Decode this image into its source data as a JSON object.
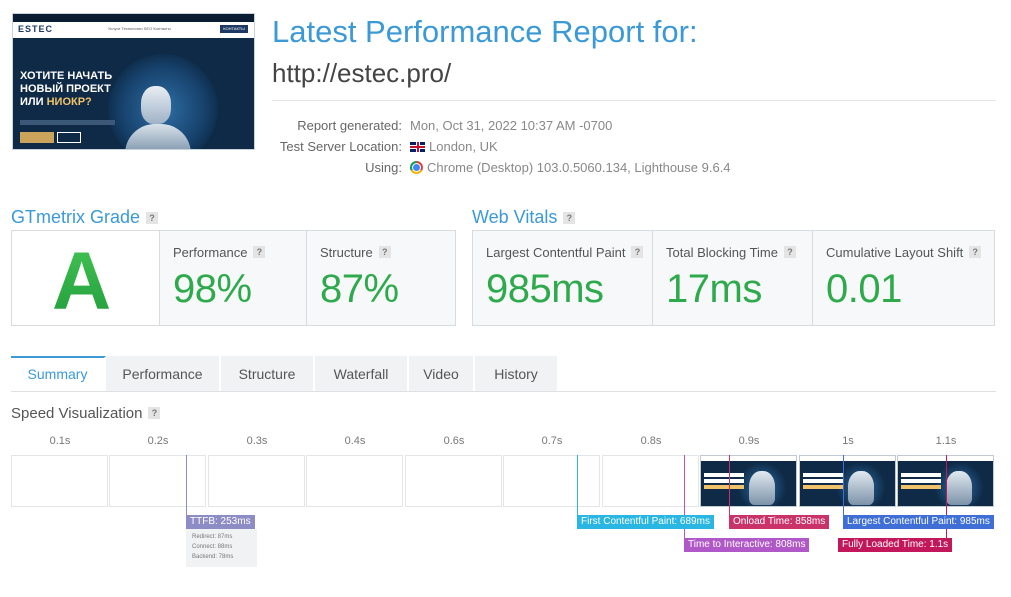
{
  "header": {
    "title": "Latest Performance Report for:",
    "url": "http://estec.pro/"
  },
  "thumbnail": {
    "logo": "ESTEC",
    "nav": "Услуги   Технологии   SEO   Контакты",
    "nav_button": "КОНТАКТЫ",
    "headline_1": "ХОТИТЕ НАЧАТЬ",
    "headline_2": "НОВЫЙ ПРОЕКТ",
    "headline_3a": "ИЛИ ",
    "headline_3b": "НИОКР?"
  },
  "report_meta": [
    {
      "key": "Report generated:",
      "value": "Mon, Oct 31, 2022 10:37 AM -0700",
      "icon": ""
    },
    {
      "key": "Test Server Location:",
      "value": "London, UK",
      "icon": "uk-flag-icon"
    },
    {
      "key": "Using:",
      "value": "Chrome (Desktop) 103.0.5060.134, Lighthouse 9.6.4",
      "icon": "chrome-icon"
    }
  ],
  "gtmetrix": {
    "title": "GTmetrix Grade",
    "help": "?",
    "grade": "A",
    "performance_label": "Performance",
    "performance_value": "98%",
    "structure_label": "Structure",
    "structure_value": "87%",
    "help_mark": "?"
  },
  "web_vitals": {
    "title": "Web Vitals",
    "help": "?",
    "lcp_label": "Largest Contentful Paint",
    "lcp_value": "985ms",
    "tbt_label": "Total Blocking Time",
    "tbt_value": "17ms",
    "cls_label": "Cumulative Layout Shift",
    "cls_value": "0.01"
  },
  "tabs": [
    "Summary",
    "Performance",
    "Structure",
    "Waterfall",
    "Video",
    "History"
  ],
  "active_tab": "Summary",
  "speed": {
    "title": "Speed Visualization",
    "help": "?",
    "time_labels": [
      "0.1s",
      "0.2s",
      "0.3s",
      "0.4s",
      "0.6s",
      "0.7s",
      "0.8s",
      "0.9s",
      "1s",
      "1.1s"
    ],
    "markers": {
      "ttfb": "TTFB: 253ms",
      "fcp": "First Contentful Paint: 689ms",
      "tti": "Time to Interactive: 808ms",
      "onload": "Onload Time: 858ms",
      "lcp": "Largest Contentful Paint: 985ms",
      "fully_loaded": "Fully Loaded Time: 1.1s"
    },
    "ttfb_breakdown": {
      "redirect": "Redirect: 87ms",
      "connect": "Connect: 88ms",
      "backend": "Backend: 78ms"
    }
  },
  "colors": {
    "accent_blue": "#3b9ad6",
    "grade_green": "#2eaa4c",
    "ttfb": "#8e8cc5",
    "fcp": "#29b6e3",
    "tti": "#b158c8",
    "onload": "#c9336a",
    "lcp": "#3f6fd6",
    "fully_loaded": "#c2185b"
  }
}
